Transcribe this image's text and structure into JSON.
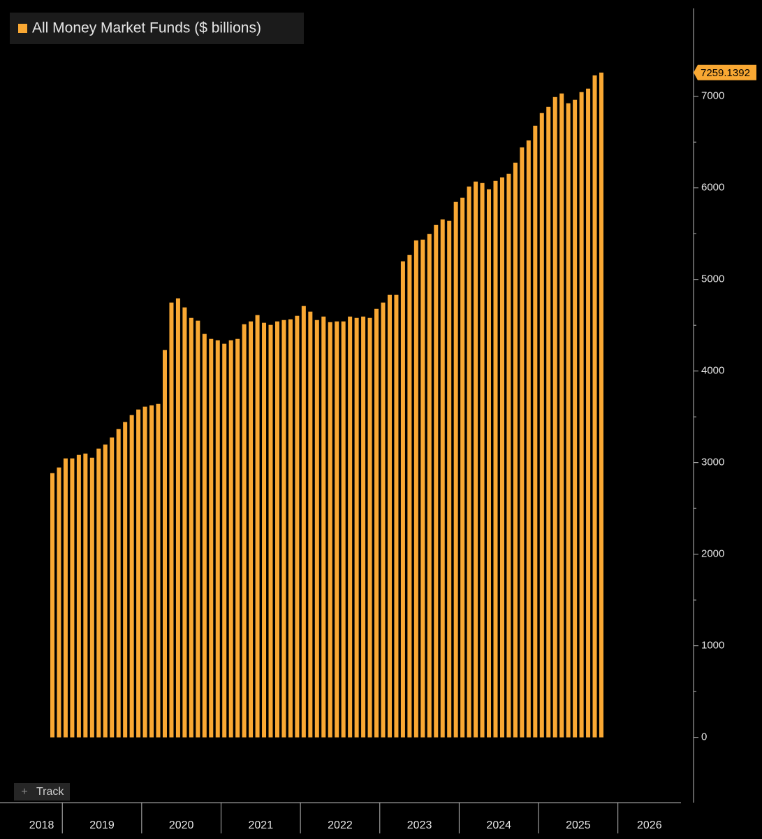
{
  "chart_data": {
    "type": "bar",
    "series": [
      {
        "name": "All Money Market Funds ($ billions)",
        "color": "#f9a833",
        "values": [
          2885,
          2947,
          3046,
          3046,
          3084,
          3099,
          3053,
          3153,
          3198,
          3275,
          3366,
          3443,
          3519,
          3580,
          3611,
          3626,
          3641,
          4229,
          4748,
          4794,
          4695,
          4580,
          4550,
          4405,
          4351,
          4336,
          4298,
          4336,
          4351,
          4511,
          4542,
          4611,
          4527,
          4504,
          4542,
          4557,
          4565,
          4603,
          4710,
          4649,
          4557,
          4595,
          4534,
          4542,
          4542,
          4595,
          4580,
          4595,
          4580,
          4679,
          4748,
          4832,
          4832,
          5198,
          5267,
          5427,
          5435,
          5496,
          5595,
          5656,
          5641,
          5847,
          5893,
          6015,
          6069,
          6053,
          5985,
          6076,
          6115,
          6153,
          6275,
          6443,
          6519,
          6679,
          6817,
          6885,
          6992,
          7031,
          6924,
          6962,
          7046,
          7084,
          7229,
          7259.1392
        ]
      }
    ],
    "year_labels": [
      "2018",
      "2019",
      "2020",
      "2021",
      "2022",
      "2023",
      "2024",
      "2025",
      "2026"
    ],
    "ylim": [
      -690,
      7960
    ],
    "yticks": [
      0,
      1000,
      2000,
      3000,
      4000,
      5000,
      6000,
      7000
    ],
    "track_label": "Track"
  }
}
